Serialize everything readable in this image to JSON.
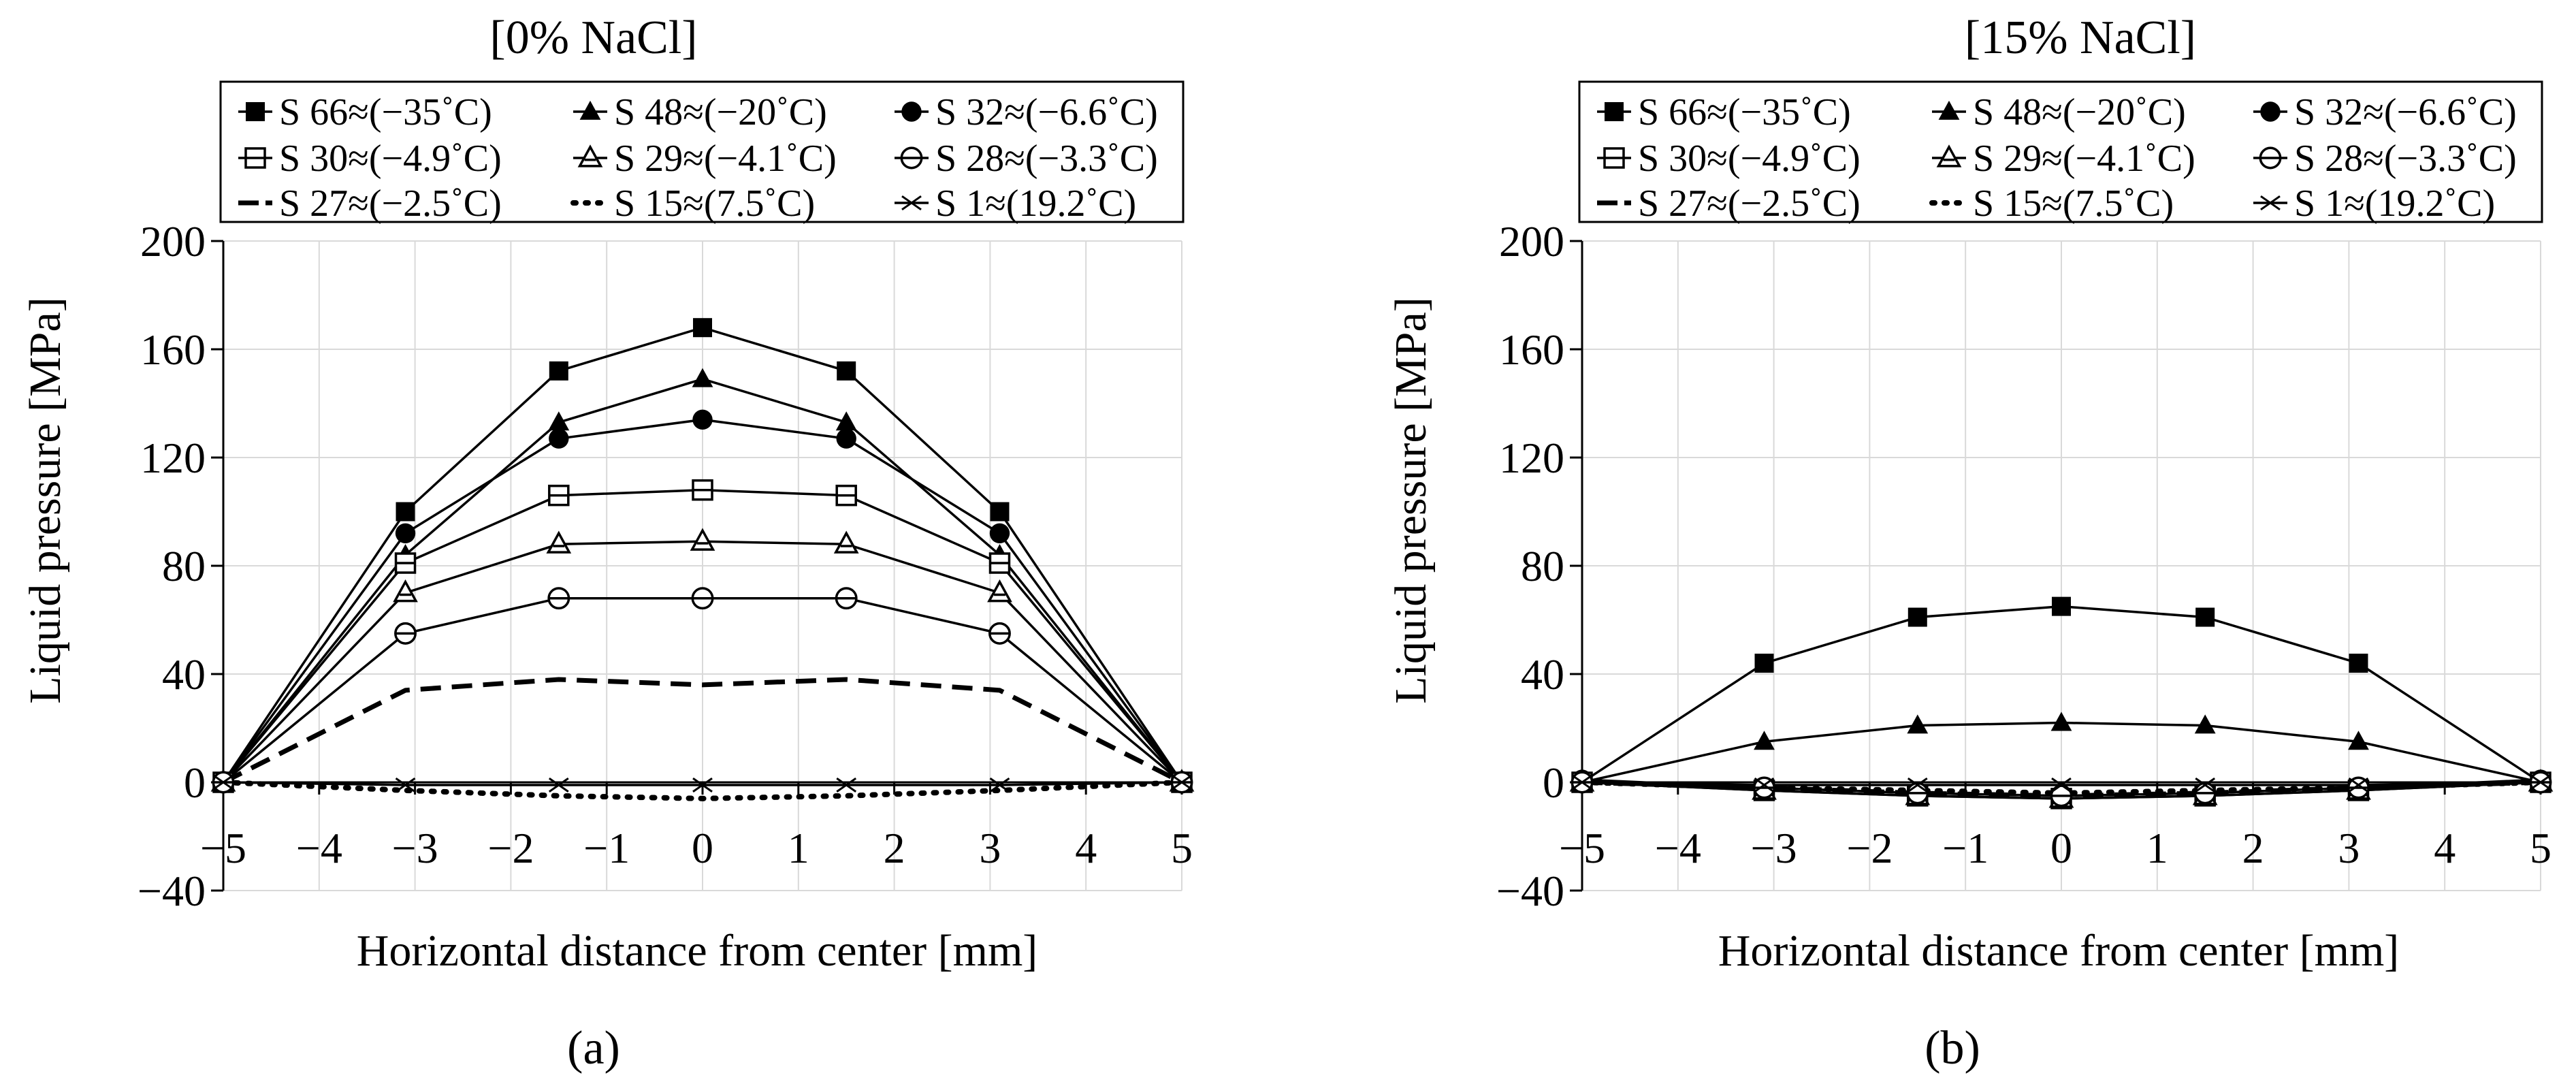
{
  "chart_data": [
    {
      "panel_label": "(a)",
      "type": "line",
      "title": "[0% NaCl]",
      "xlabel": "Horizontal distance from center [mm]",
      "ylabel": "Liquid pressure [MPa]",
      "xlim": [
        -5,
        5
      ],
      "ylim": [
        -40,
        200
      ],
      "xticks": [
        -5,
        -4,
        -3,
        -2,
        -1,
        0,
        1,
        2,
        3,
        4,
        5
      ],
      "yticks": [
        -40,
        0,
        40,
        80,
        120,
        160,
        200
      ],
      "grid": true,
      "legend_position": "top",
      "x": [
        -5,
        -3.1,
        -1.5,
        0,
        1.5,
        3.1,
        5
      ],
      "series": [
        {
          "name": "S 66≈(−35˚C)",
          "marker": "square-filled",
          "style": "solid",
          "values": [
            0,
            100,
            152,
            168,
            152,
            100,
            0
          ]
        },
        {
          "name": "S 48≈(−20˚C)",
          "marker": "triangle-filled",
          "style": "solid",
          "values": [
            0,
            84,
            133,
            149,
            133,
            84,
            0
          ]
        },
        {
          "name": "S 32≈(−6.6˚C)",
          "marker": "circle-filled",
          "style": "solid",
          "values": [
            0,
            92,
            127,
            134,
            127,
            92,
            0
          ]
        },
        {
          "name": "S 30≈(−4.9˚C)",
          "marker": "square-open-line",
          "style": "solid",
          "values": [
            0,
            81,
            106,
            108,
            106,
            81,
            0
          ]
        },
        {
          "name": "S 29≈(−4.1˚C)",
          "marker": "triangle-open-line",
          "style": "solid",
          "values": [
            0,
            70,
            88,
            89,
            88,
            70,
            0
          ]
        },
        {
          "name": "S 28≈(−3.3˚C)",
          "marker": "circle-open-line",
          "style": "solid",
          "values": [
            0,
            55,
            68,
            68,
            68,
            55,
            0
          ]
        },
        {
          "name": "S 27≈(−2.5˚C)",
          "marker": "none",
          "style": "dashed",
          "values": [
            0,
            34,
            38,
            36,
            38,
            34,
            0
          ]
        },
        {
          "name": "S 15≈(7.5˚C)",
          "marker": "none",
          "style": "dotted",
          "values": [
            0,
            -3,
            -5,
            -6,
            -5,
            -3,
            0
          ]
        },
        {
          "name": "S 1≈(19.2˚C)",
          "marker": "asterisk",
          "style": "solid",
          "values": [
            0,
            -1,
            -1,
            -1,
            -1,
            -1,
            0
          ]
        }
      ]
    },
    {
      "panel_label": "(b)",
      "type": "line",
      "title": "[15% NaCl]",
      "xlabel": "Horizontal distance from center [mm]",
      "ylabel": "Liquid pressure [MPa]",
      "xlim": [
        -5,
        5
      ],
      "ylim": [
        -40,
        200
      ],
      "xticks": [
        -5,
        -4,
        -3,
        -2,
        -1,
        0,
        1,
        2,
        3,
        4,
        5
      ],
      "yticks": [
        -40,
        0,
        40,
        80,
        120,
        160,
        200
      ],
      "grid": true,
      "legend_position": "top",
      "x": [
        -5,
        -3.1,
        -1.5,
        0,
        1.5,
        3.1,
        5
      ],
      "series": [
        {
          "name": "S 66≈(−35˚C)",
          "marker": "square-filled",
          "style": "solid",
          "values": [
            0,
            44,
            61,
            65,
            61,
            44,
            0
          ]
        },
        {
          "name": "S 48≈(−20˚C)",
          "marker": "triangle-filled",
          "style": "solid",
          "values": [
            0,
            15,
            21,
            22,
            21,
            15,
            0
          ]
        },
        {
          "name": "S 32≈(−6.6˚C)",
          "marker": "circle-filled",
          "style": "solid",
          "values": [
            1,
            -2,
            -4,
            -5,
            -4,
            -2,
            1
          ]
        },
        {
          "name": "S 30≈(−4.9˚C)",
          "marker": "square-open-line",
          "style": "solid",
          "values": [
            0,
            -3,
            -5,
            -6,
            -5,
            -3,
            0
          ]
        },
        {
          "name": "S 29≈(−4.1˚C)",
          "marker": "triangle-open-line",
          "style": "solid",
          "values": [
            0,
            -3,
            -5,
            -6,
            -5,
            -3,
            0
          ]
        },
        {
          "name": "S 28≈(−3.3˚C)",
          "marker": "circle-open-line",
          "style": "solid",
          "values": [
            0,
            -2,
            -4,
            -5,
            -4,
            -2,
            0
          ]
        },
        {
          "name": "S 27≈(−2.5˚C)",
          "marker": "none",
          "style": "dashed",
          "values": [
            0,
            -2,
            -4,
            -5,
            -4,
            -2,
            0
          ]
        },
        {
          "name": "S 15≈(7.5˚C)",
          "marker": "none",
          "style": "dotted",
          "values": [
            0,
            -2,
            -3,
            -4,
            -3,
            -2,
            0
          ]
        },
        {
          "name": "S 1≈(19.2˚C)",
          "marker": "asterisk",
          "style": "solid",
          "values": [
            0,
            -1,
            -1,
            -1,
            -1,
            -1,
            0
          ]
        }
      ]
    }
  ]
}
